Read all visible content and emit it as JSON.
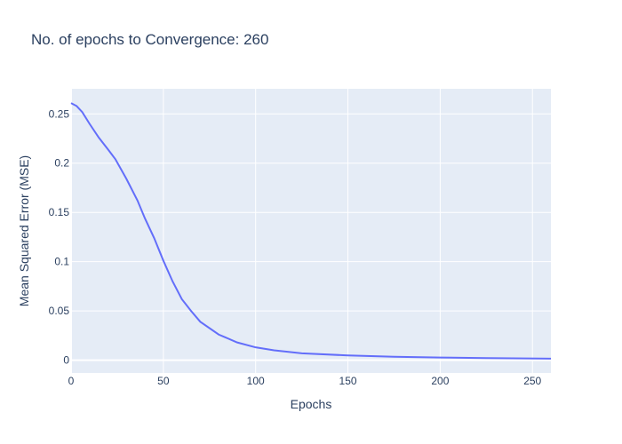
{
  "chart_data": {
    "type": "line",
    "title": "No. of epochs to Convergence: 260",
    "xlabel": "Epochs",
    "ylabel": "Mean Squared Error (MSE)",
    "xlim": [
      0,
      260
    ],
    "ylim": [
      -0.013,
      0.2755
    ],
    "x_ticks": [
      0,
      50,
      100,
      150,
      200,
      250
    ],
    "x_tick_labels": [
      "0",
      "50",
      "100",
      "150",
      "200",
      "250"
    ],
    "y_ticks": [
      0,
      0.05,
      0.1,
      0.15,
      0.2,
      0.25
    ],
    "y_tick_labels": [
      "0",
      "0.05",
      "0.1",
      "0.15",
      "0.2",
      "0.25"
    ],
    "grid": true,
    "colors": {
      "line": "#636efa",
      "plot_bg": "#e5ecf6",
      "grid": "#ffffff",
      "text": "#2a3f5f"
    },
    "series": [
      {
        "x": [
          0,
          3,
          6,
          10,
          15,
          20,
          24,
          30,
          36,
          40,
          45,
          50,
          55,
          60,
          65,
          70,
          80,
          90,
          100,
          110,
          125,
          150,
          175,
          200,
          225,
          260
        ],
        "y": [
          0.261,
          0.258,
          0.252,
          0.24,
          0.226,
          0.214,
          0.204,
          0.184,
          0.162,
          0.144,
          0.124,
          0.101,
          0.08,
          0.062,
          0.05,
          0.039,
          0.026,
          0.018,
          0.013,
          0.01,
          0.007,
          0.0048,
          0.0035,
          0.0027,
          0.0021,
          0.0015
        ]
      }
    ]
  }
}
